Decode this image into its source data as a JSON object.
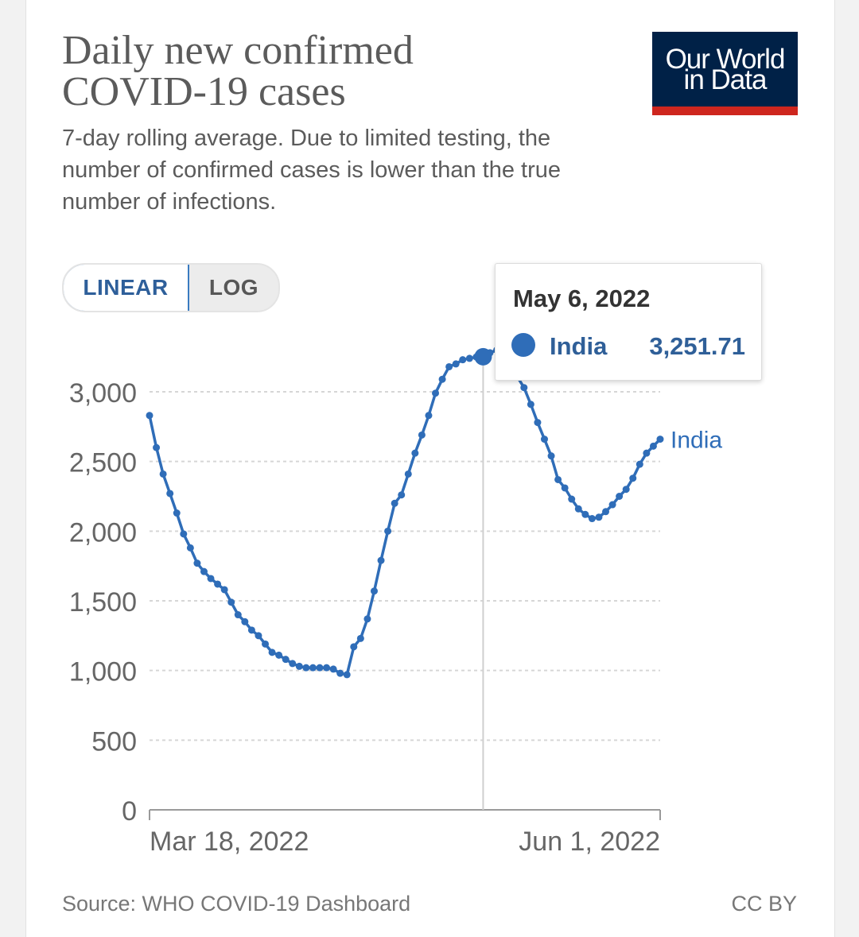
{
  "header": {
    "title": "Daily new confirmed COVID-19 cases",
    "subtitle": "7-day rolling average. Due to limited testing, the number of confirmed cases is lower than the true number of infections.",
    "logo_line1": "Our World",
    "logo_line2": "in Data"
  },
  "controls": {
    "linear_label": "LINEAR",
    "log_label": "LOG",
    "selected": "LINEAR"
  },
  "tooltip": {
    "date": "May 6, 2022",
    "entity": "India",
    "value": "3,251.71"
  },
  "footer": {
    "source": "Source: WHO COVID-19 Dashboard",
    "license": "CC BY"
  },
  "colors": {
    "series": "#2f6db8",
    "logo_bg": "#002147",
    "logo_stripe": "#ce261e"
  },
  "chart_data": {
    "type": "line",
    "title": "Daily new confirmed COVID-19 cases",
    "subtitle": "7-day rolling average. Due to limited testing, the number of confirmed cases is lower than the true number of infections.",
    "x_tick_labels": [
      "Mar 18, 2022",
      "Jun 1, 2022"
    ],
    "x_range": [
      "Mar 18, 2022",
      "Jun 1, 2022"
    ],
    "y_ticks": [
      0,
      500,
      1000,
      1500,
      2000,
      2500,
      3000
    ],
    "y_tick_labels": [
      "0",
      "500",
      "1,000",
      "1,500",
      "2,000",
      "2,500",
      "3,000"
    ],
    "ylim": [
      0,
      3250
    ],
    "grid": "horizontal dashed",
    "legend": "inline label at line end",
    "scale_options": [
      "LINEAR",
      "LOG"
    ],
    "highlight": {
      "x": "May 6, 2022",
      "value": 3251.71
    },
    "series": [
      {
        "name": "India",
        "x": [
          "Mar 18, 2022",
          "Mar 19, 2022",
          "Mar 20, 2022",
          "Mar 21, 2022",
          "Mar 22, 2022",
          "Mar 23, 2022",
          "Mar 24, 2022",
          "Mar 25, 2022",
          "Mar 26, 2022",
          "Mar 27, 2022",
          "Mar 28, 2022",
          "Mar 29, 2022",
          "Mar 30, 2022",
          "Mar 31, 2022",
          "Apr 1, 2022",
          "Apr 2, 2022",
          "Apr 3, 2022",
          "Apr 4, 2022",
          "Apr 5, 2022",
          "Apr 6, 2022",
          "Apr 7, 2022",
          "Apr 8, 2022",
          "Apr 9, 2022",
          "Apr 10, 2022",
          "Apr 11, 2022",
          "Apr 12, 2022",
          "Apr 13, 2022",
          "Apr 14, 2022",
          "Apr 15, 2022",
          "Apr 16, 2022",
          "Apr 17, 2022",
          "Apr 18, 2022",
          "Apr 19, 2022",
          "Apr 20, 2022",
          "Apr 21, 2022",
          "Apr 22, 2022",
          "Apr 23, 2022",
          "Apr 24, 2022",
          "Apr 25, 2022",
          "Apr 26, 2022",
          "Apr 27, 2022",
          "Apr 28, 2022",
          "Apr 29, 2022",
          "Apr 30, 2022",
          "May 1, 2022",
          "May 2, 2022",
          "May 3, 2022",
          "May 4, 2022",
          "May 5, 2022",
          "May 6, 2022",
          "May 7, 2022",
          "May 8, 2022",
          "May 9, 2022",
          "May 10, 2022",
          "May 11, 2022",
          "May 12, 2022",
          "May 13, 2022",
          "May 14, 2022",
          "May 15, 2022",
          "May 16, 2022",
          "May 17, 2022",
          "May 18, 2022",
          "May 19, 2022",
          "May 20, 2022",
          "May 21, 2022",
          "May 22, 2022",
          "May 23, 2022",
          "May 24, 2022",
          "May 25, 2022",
          "May 26, 2022",
          "May 27, 2022",
          "May 28, 2022",
          "May 29, 2022",
          "May 30, 2022",
          "May 31, 2022",
          "Jun 1, 2022"
        ],
        "values": [
          2830,
          2600,
          2410,
          2270,
          2130,
          1980,
          1880,
          1770,
          1710,
          1660,
          1620,
          1580,
          1490,
          1400,
          1350,
          1290,
          1250,
          1190,
          1130,
          1110,
          1080,
          1050,
          1030,
          1020,
          1020,
          1020,
          1020,
          1010,
          980,
          970,
          1170,
          1230,
          1370,
          1570,
          1790,
          2000,
          2200,
          2260,
          2410,
          2560,
          2690,
          2830,
          2990,
          3090,
          3180,
          3200,
          3230,
          3240,
          3250,
          3251.71,
          3280,
          3300,
          3260,
          3190,
          3110,
          3030,
          2910,
          2780,
          2660,
          2540,
          2370,
          2310,
          2230,
          2160,
          2120,
          2090,
          2100,
          2140,
          2190,
          2250,
          2300,
          2380,
          2480,
          2560,
          2610,
          2660
        ]
      }
    ]
  }
}
